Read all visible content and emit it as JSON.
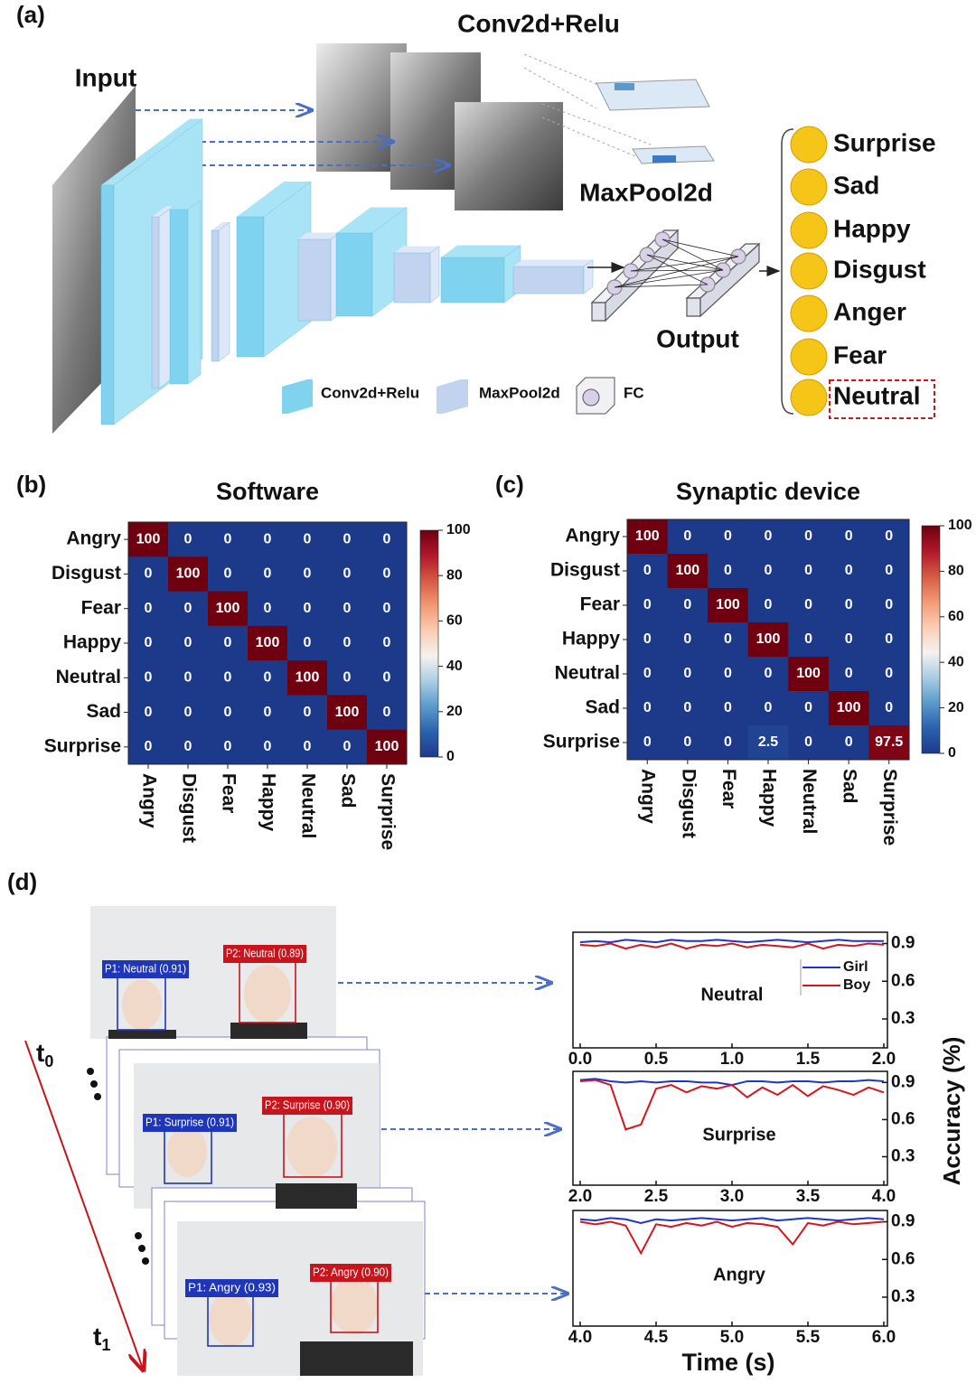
{
  "panel_a": {
    "label": "(a)",
    "conv_title": "Conv2d+Relu",
    "input": "Input",
    "maxpool": "MaxPool2d",
    "output": "Output",
    "legend": [
      "Conv2d+Relu",
      "MaxPool2d",
      "FC"
    ],
    "emotions": [
      "Surprise",
      "Sad",
      "Happy",
      "Disgust",
      "Anger",
      "Fear",
      "Neutral"
    ]
  },
  "panel_b": {
    "label": "(b)",
    "type": "heatmap",
    "title": "Software",
    "categories": [
      "Angry",
      "Disgust",
      "Fear",
      "Happy",
      "Neutral",
      "Sad",
      "Surprise"
    ],
    "matrix": [
      [
        100,
        0,
        0,
        0,
        0,
        0,
        0
      ],
      [
        0,
        100,
        0,
        0,
        0,
        0,
        0
      ],
      [
        0,
        0,
        100,
        0,
        0,
        0,
        0
      ],
      [
        0,
        0,
        0,
        100,
        0,
        0,
        0
      ],
      [
        0,
        0,
        0,
        0,
        100,
        0,
        0
      ],
      [
        0,
        0,
        0,
        0,
        0,
        100,
        0
      ],
      [
        0,
        0,
        0,
        0,
        0,
        0,
        100
      ]
    ],
    "zlim": [
      0,
      100
    ],
    "zticks": [
      0,
      20,
      40,
      60,
      80,
      100
    ],
    "colormap": [
      "#1d3a8a",
      "#2b62ad",
      "#5a9acb",
      "#a9cde3",
      "#f5f2ef",
      "#fbcdb3",
      "#f19a74",
      "#d55a45",
      "#b0172a",
      "#6e0010"
    ]
  },
  "panel_c": {
    "label": "(c)",
    "type": "heatmap",
    "title": "Synaptic device",
    "categories": [
      "Angry",
      "Disgust",
      "Fear",
      "Happy",
      "Neutral",
      "Sad",
      "Surprise"
    ],
    "matrix": [
      [
        100,
        0,
        0,
        0,
        0,
        0,
        0
      ],
      [
        0,
        100,
        0,
        0,
        0,
        0,
        0
      ],
      [
        0,
        0,
        100,
        0,
        0,
        0,
        0
      ],
      [
        0,
        0,
        0,
        100,
        0,
        0,
        0
      ],
      [
        0,
        0,
        0,
        0,
        100,
        0,
        0
      ],
      [
        0,
        0,
        0,
        0,
        0,
        100,
        0
      ],
      [
        0,
        0,
        0,
        2.5,
        0,
        0,
        97.5
      ]
    ],
    "zlim": [
      0,
      100
    ],
    "zticks": [
      0,
      20,
      40,
      60,
      80,
      100
    ],
    "colormap": [
      "#1d3a8a",
      "#2b62ad",
      "#5a9acb",
      "#a9cde3",
      "#f5f2ef",
      "#fbcdb3",
      "#f19a74",
      "#d55a45",
      "#b0172a",
      "#6e0010"
    ]
  },
  "panel_d": {
    "label": "(d)",
    "t0": {
      "base": "t",
      "sub": "0"
    },
    "t1": {
      "base": "t",
      "sub": "1"
    },
    "frames": [
      {
        "p1": "P1: Neutral (0.91)",
        "p2": "P2: Neutral (0.89)"
      },
      {
        "p1": "P1: Surprise (0.91)",
        "p2": "P2: Surprise (0.90)"
      },
      {
        "p1": "P1: Angry (0.93)",
        "p2": "P2: Angry (0.90)"
      }
    ],
    "ylabel": "Accuracy (%)",
    "xlabel": "Time (s)",
    "legend": [
      {
        "name": "Girl",
        "color": "#1f35c8"
      },
      {
        "name": "Boy",
        "color": "#d8141c"
      }
    ],
    "charts": [
      {
        "type": "line",
        "annotation": "Neutral",
        "x": [
          0,
          0.1,
          0.2,
          0.3,
          0.4,
          0.5,
          0.6,
          0.7,
          0.8,
          0.9,
          1,
          1.1,
          1.2,
          1.3,
          1.4,
          1.5,
          1.6,
          1.7,
          1.8,
          1.9,
          2
        ],
        "xlim": [
          0,
          2
        ],
        "xticks": [
          {
            "value": 0,
            "label": "0.0"
          },
          0.5,
          {
            "value": 1,
            "label": "1.0"
          },
          1.5,
          {
            "value": 2,
            "label": "2.0"
          }
        ],
        "ylim": [
          0.07,
          0.99
        ],
        "yticks": [
          0.3,
          0.6,
          0.9
        ],
        "series": [
          {
            "values": [
              0.91,
              0.92,
              0.91,
              0.93,
              0.92,
              0.91,
              0.93,
              0.92,
              0.92,
              0.93,
              0.92,
              0.91,
              0.92,
              0.93,
              0.92,
              0.91,
              0.92,
              0.93,
              0.92,
              0.92,
              0.92
            ]
          },
          {
            "values": [
              0.89,
              0.88,
              0.9,
              0.86,
              0.89,
              0.87,
              0.9,
              0.86,
              0.89,
              0.88,
              0.9,
              0.87,
              0.89,
              0.88,
              0.87,
              0.9,
              0.86,
              0.89,
              0.88,
              0.9,
              0.89
            ]
          }
        ]
      },
      {
        "type": "line",
        "annotation": "Surprise",
        "x": [
          2,
          2.1,
          2.2,
          2.3,
          2.4,
          2.5,
          2.6,
          2.7,
          2.8,
          2.9,
          3,
          3.1,
          3.2,
          3.3,
          3.4,
          3.5,
          3.6,
          3.7,
          3.8,
          3.9,
          4
        ],
        "xlim": [
          2,
          4
        ],
        "xticks": [
          {
            "value": 2,
            "label": "2.0"
          },
          2.5,
          {
            "value": 3,
            "label": "3.0"
          },
          3.5,
          {
            "value": 4,
            "label": "4.0"
          }
        ],
        "ylim": [
          0.07,
          0.99
        ],
        "yticks": [
          0.3,
          0.6,
          0.9
        ],
        "series": [
          {
            "values": [
              0.92,
              0.93,
              0.91,
              0.9,
              0.91,
              0.9,
              0.91,
              0.91,
              0.9,
              0.9,
              0.88,
              0.91,
              0.91,
              0.9,
              0.91,
              0.91,
              0.9,
              0.91,
              0.91,
              0.92,
              0.91
            ]
          },
          {
            "values": [
              0.91,
              0.92,
              0.88,
              0.52,
              0.56,
              0.85,
              0.88,
              0.82,
              0.87,
              0.85,
              0.88,
              0.78,
              0.86,
              0.8,
              0.88,
              0.79,
              0.87,
              0.84,
              0.8,
              0.86,
              0.82
            ]
          }
        ]
      },
      {
        "type": "line",
        "annotation": "Angry",
        "x": [
          4,
          4.1,
          4.2,
          4.3,
          4.4,
          4.5,
          4.6,
          4.7,
          4.8,
          4.9,
          5,
          5.1,
          5.2,
          5.3,
          5.4,
          5.5,
          5.6,
          5.7,
          5.8,
          5.9,
          6
        ],
        "xlim": [
          4,
          6
        ],
        "xticks": [
          {
            "value": 4,
            "label": "4.0"
          },
          4.5,
          {
            "value": 5,
            "label": "5.0"
          },
          5.5,
          {
            "value": 6,
            "label": "6.0"
          }
        ],
        "ylim": [
          0.07,
          0.99
        ],
        "yticks": [
          0.3,
          0.6,
          0.9
        ],
        "series": [
          {
            "values": [
              0.92,
              0.91,
              0.93,
              0.92,
              0.89,
              0.92,
              0.91,
              0.92,
              0.93,
              0.92,
              0.91,
              0.92,
              0.93,
              0.91,
              0.92,
              0.93,
              0.92,
              0.91,
              0.92,
              0.93,
              0.92
            ]
          },
          {
            "values": [
              0.9,
              0.88,
              0.9,
              0.87,
              0.65,
              0.88,
              0.86,
              0.89,
              0.87,
              0.9,
              0.86,
              0.89,
              0.88,
              0.86,
              0.72,
              0.89,
              0.87,
              0.9,
              0.88,
              0.89,
              0.9
            ]
          }
        ]
      }
    ]
  }
}
